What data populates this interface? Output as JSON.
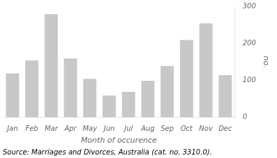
{
  "chart_data": {
    "type": "bar",
    "categories": [
      "Jan",
      "Feb",
      "Mar",
      "Apr",
      "May",
      "Jun",
      "Jul",
      "Aug",
      "Sep",
      "Oct",
      "Nov",
      "Dec"
    ],
    "values": [
      120,
      155,
      280,
      160,
      105,
      60,
      70,
      100,
      140,
      210,
      255,
      115
    ],
    "color": "#c8c8c8",
    "xlabel": "Month of occurence",
    "ylabel": "no.",
    "ylim": [
      0,
      300
    ],
    "yticks": [
      0,
      100,
      200,
      300
    ],
    "grid": false,
    "annotations": [
      "Source: Marriages and Divorces, Australia (cat. no. 3310.0)."
    ]
  }
}
